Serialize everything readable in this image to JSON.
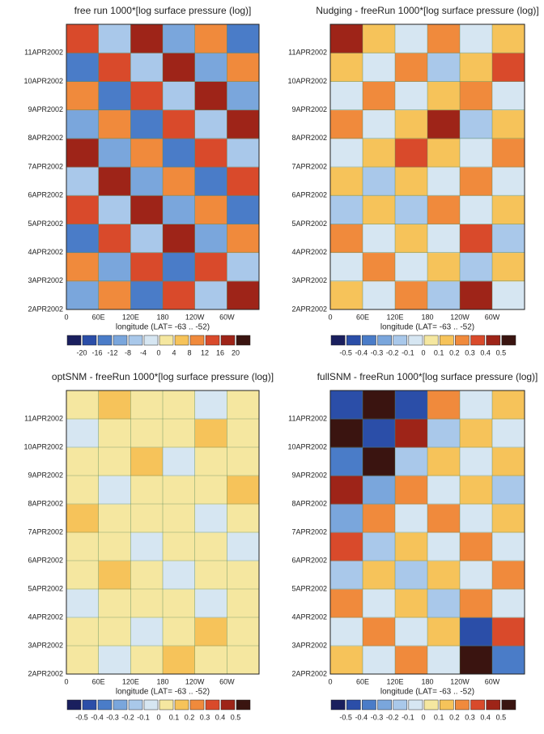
{
  "chart_data": [
    {
      "type": "heatmap",
      "title": "free run 1000*[log surface pressure (log)]",
      "xlabel": "longitude (LAT= -63 .. -52)",
      "xlim": [
        0,
        360
      ],
      "xticks": [
        0,
        {
          "value": 60,
          "label": "60E"
        },
        {
          "value": 120,
          "label": "120E"
        },
        180,
        {
          "value": 240,
          "label": "120W"
        },
        {
          "value": 300,
          "label": "60W"
        }
      ],
      "ylim": [
        2,
        12
      ],
      "yticks": [
        {
          "value": 2,
          "label": "2APR2002"
        },
        {
          "value": 3,
          "label": "3APR2002"
        },
        {
          "value": 4,
          "label": "4APR2002"
        },
        {
          "value": 5,
          "label": "5APR2002"
        },
        {
          "value": 6,
          "label": "6APR2002"
        },
        {
          "value": 7,
          "label": "7APR2002"
        },
        {
          "value": 8,
          "label": "8APR2002"
        },
        {
          "value": 9,
          "label": "9APR2002"
        },
        {
          "value": 10,
          "label": "10APR2002"
        },
        {
          "value": 11,
          "label": "11APR2002"
        }
      ],
      "grid": true,
      "z": [
        [
          -12,
          8,
          -16,
          12,
          -8,
          16
        ],
        [
          8,
          -12,
          12,
          -16,
          12,
          -8
        ],
        [
          -16,
          12,
          -8,
          16,
          -12,
          8
        ],
        [
          12,
          -8,
          16,
          -12,
          8,
          -16
        ],
        [
          -8,
          16,
          -12,
          8,
          -16,
          12
        ],
        [
          16,
          -12,
          8,
          -16,
          12,
          -8
        ],
        [
          -12,
          8,
          -16,
          12,
          -8,
          16
        ],
        [
          8,
          -16,
          12,
          -8,
          16,
          -12
        ],
        [
          -16,
          12,
          -8,
          16,
          -12,
          8
        ],
        [
          12,
          -8,
          16,
          -12,
          8,
          -16
        ]
      ],
      "colorbar": {
        "levels": [
          -20,
          -16,
          -12,
          -8,
          -4,
          0,
          4,
          8,
          12,
          16,
          20
        ],
        "colors": [
          "#1a1f5e",
          "#2b4ea8",
          "#4a7cc8",
          "#7aa6dc",
          "#a9c8ea",
          "#d6e6f2",
          "#f5e7a0",
          "#f6c35a",
          "#f08a3c",
          "#d94a2b",
          "#9e2418",
          "#3a1410"
        ]
      }
    },
    {
      "type": "heatmap",
      "title": "Nudging - freeRun 1000*[log surface pressure (log)]",
      "xlabel": "longitude (LAT= -63 .. -52)",
      "xlim": [
        0,
        360
      ],
      "xticks": [
        0,
        {
          "value": 60,
          "label": "60E"
        },
        {
          "value": 120,
          "label": "120E"
        },
        180,
        {
          "value": 240,
          "label": "120W"
        },
        {
          "value": 300,
          "label": "60W"
        }
      ],
      "ylim": [
        2,
        12
      ],
      "yticks": [
        {
          "value": 2,
          "label": "2APR2002"
        },
        {
          "value": 3,
          "label": "3APR2002"
        },
        {
          "value": 4,
          "label": "4APR2002"
        },
        {
          "value": 5,
          "label": "5APR2002"
        },
        {
          "value": 6,
          "label": "6APR2002"
        },
        {
          "value": 7,
          "label": "7APR2002"
        },
        {
          "value": 8,
          "label": "8APR2002"
        },
        {
          "value": 9,
          "label": "9APR2002"
        },
        {
          "value": 10,
          "label": "10APR2002"
        },
        {
          "value": 11,
          "label": "11APR2002"
        }
      ],
      "grid": true,
      "z": [
        [
          0.1,
          -0.1,
          0.2,
          -0.2,
          0.4,
          -0.1
        ],
        [
          -0.1,
          0.2,
          -0.1,
          0.1,
          -0.2,
          0.1
        ],
        [
          0.2,
          -0.1,
          0.1,
          -0.1,
          0.3,
          -0.2
        ],
        [
          -0.2,
          0.1,
          -0.2,
          0.2,
          -0.1,
          0.1
        ],
        [
          0.1,
          -0.2,
          0.1,
          -0.1,
          0.2,
          -0.1
        ],
        [
          -0.1,
          0.1,
          0.3,
          0.1,
          -0.1,
          0.2
        ],
        [
          0.2,
          -0.1,
          0.1,
          0.4,
          -0.2,
          0.1
        ],
        [
          -0.1,
          0.2,
          -0.1,
          0.1,
          0.2,
          -0.1
        ],
        [
          0.1,
          -0.1,
          0.2,
          -0.2,
          0.1,
          0.3
        ],
        [
          0.4,
          0.1,
          -0.1,
          0.2,
          -0.1,
          0.1
        ]
      ],
      "colorbar": {
        "levels": [
          -0.5,
          -0.4,
          -0.3,
          -0.2,
          -0.1,
          0,
          0.1,
          0.2,
          0.3,
          0.4,
          0.5
        ],
        "colors": [
          "#1a1f5e",
          "#2b4ea8",
          "#4a7cc8",
          "#7aa6dc",
          "#a9c8ea",
          "#d6e6f2",
          "#f5e7a0",
          "#f6c35a",
          "#f08a3c",
          "#d94a2b",
          "#9e2418",
          "#3a1410"
        ]
      }
    },
    {
      "type": "heatmap",
      "title": "optSNM - freeRun 1000*[log surface pressure (log)]",
      "xlabel": "longitude (LAT= -63 .. -52)",
      "xlim": [
        0,
        360
      ],
      "xticks": [
        0,
        {
          "value": 60,
          "label": "60E"
        },
        {
          "value": 120,
          "label": "120E"
        },
        180,
        {
          "value": 240,
          "label": "120W"
        },
        {
          "value": 300,
          "label": "60W"
        }
      ],
      "ylim": [
        2,
        12
      ],
      "yticks": [
        {
          "value": 2,
          "label": "2APR2002"
        },
        {
          "value": 3,
          "label": "3APR2002"
        },
        {
          "value": 4,
          "label": "4APR2002"
        },
        {
          "value": 5,
          "label": "5APR2002"
        },
        {
          "value": 6,
          "label": "6APR2002"
        },
        {
          "value": 7,
          "label": "7APR2002"
        },
        {
          "value": 8,
          "label": "8APR2002"
        },
        {
          "value": 9,
          "label": "9APR2002"
        },
        {
          "value": 10,
          "label": "10APR2002"
        },
        {
          "value": 11,
          "label": "11APR2002"
        }
      ],
      "grid": true,
      "z": [
        [
          0.05,
          -0.05,
          0.05,
          0.15,
          0.05,
          0.05
        ],
        [
          0.05,
          0.05,
          -0.05,
          0.05,
          0.15,
          0.05
        ],
        [
          -0.05,
          0.05,
          0.05,
          0.05,
          -0.05,
          0.05
        ],
        [
          0.05,
          0.15,
          0.05,
          -0.05,
          0.05,
          0.05
        ],
        [
          0.05,
          0.05,
          -0.05,
          0.05,
          0.05,
          -0.05
        ],
        [
          0.15,
          0.05,
          0.05,
          0.05,
          -0.05,
          0.05
        ],
        [
          0.05,
          -0.05,
          0.05,
          0.05,
          0.05,
          0.15
        ],
        [
          0.05,
          0.05,
          0.15,
          -0.05,
          0.05,
          0.05
        ],
        [
          -0.05,
          0.05,
          0.05,
          0.05,
          0.15,
          0.05
        ],
        [
          0.05,
          0.15,
          0.05,
          0.05,
          -0.05,
          0.05
        ]
      ],
      "colorbar": {
        "levels": [
          -0.5,
          -0.4,
          -0.3,
          -0.2,
          -0.1,
          0,
          0.1,
          0.2,
          0.3,
          0.4,
          0.5
        ],
        "colors": [
          "#1a1f5e",
          "#2b4ea8",
          "#4a7cc8",
          "#7aa6dc",
          "#a9c8ea",
          "#d6e6f2",
          "#f5e7a0",
          "#f6c35a",
          "#f08a3c",
          "#d94a2b",
          "#9e2418",
          "#3a1410"
        ]
      }
    },
    {
      "type": "heatmap",
      "title": "fullSNM - freeRun 1000*[log surface pressure (log)]",
      "xlabel": "longitude (LAT= -63 .. -52)",
      "xlim": [
        0,
        360
      ],
      "xticks": [
        0,
        {
          "value": 60,
          "label": "60E"
        },
        {
          "value": 120,
          "label": "120E"
        },
        180,
        {
          "value": 240,
          "label": "120W"
        },
        {
          "value": 300,
          "label": "60W"
        }
      ],
      "ylim": [
        2,
        12
      ],
      "yticks": [
        {
          "value": 2,
          "label": "2APR2002"
        },
        {
          "value": 3,
          "label": "3APR2002"
        },
        {
          "value": 4,
          "label": "4APR2002"
        },
        {
          "value": 5,
          "label": "5APR2002"
        },
        {
          "value": 6,
          "label": "6APR2002"
        },
        {
          "value": 7,
          "label": "7APR2002"
        },
        {
          "value": 8,
          "label": "8APR2002"
        },
        {
          "value": 9,
          "label": "9APR2002"
        },
        {
          "value": 10,
          "label": "10APR2002"
        },
        {
          "value": 11,
          "label": "11APR2002"
        }
      ],
      "grid": true,
      "z": [
        [
          0.1,
          -0.1,
          0.2,
          -0.1,
          0.5,
          -0.4
        ],
        [
          -0.1,
          0.2,
          -0.1,
          0.1,
          -0.5,
          0.3
        ],
        [
          0.2,
          -0.1,
          0.1,
          -0.2,
          0.2,
          -0.1
        ],
        [
          -0.2,
          0.1,
          -0.2,
          0.1,
          -0.1,
          0.2
        ],
        [
          0.3,
          -0.2,
          0.1,
          -0.1,
          0.2,
          -0.1
        ],
        [
          -0.3,
          0.2,
          -0.1,
          0.2,
          -0.1,
          0.1
        ],
        [
          0.4,
          -0.3,
          0.2,
          -0.1,
          0.1,
          -0.2
        ],
        [
          -0.4,
          0.5,
          -0.2,
          0.1,
          -0.1,
          0.1
        ],
        [
          0.5,
          -0.5,
          0.4,
          -0.2,
          0.1,
          -0.1
        ],
        [
          -0.5,
          0.5,
          -0.5,
          0.2,
          -0.1,
          0.1
        ]
      ],
      "colorbar": {
        "levels": [
          -0.5,
          -0.4,
          -0.3,
          -0.2,
          -0.1,
          0,
          0.1,
          0.2,
          0.3,
          0.4,
          0.5
        ],
        "colors": [
          "#1a1f5e",
          "#2b4ea8",
          "#4a7cc8",
          "#7aa6dc",
          "#a9c8ea",
          "#d6e6f2",
          "#f5e7a0",
          "#f6c35a",
          "#f08a3c",
          "#d94a2b",
          "#9e2418",
          "#3a1410"
        ]
      }
    }
  ]
}
